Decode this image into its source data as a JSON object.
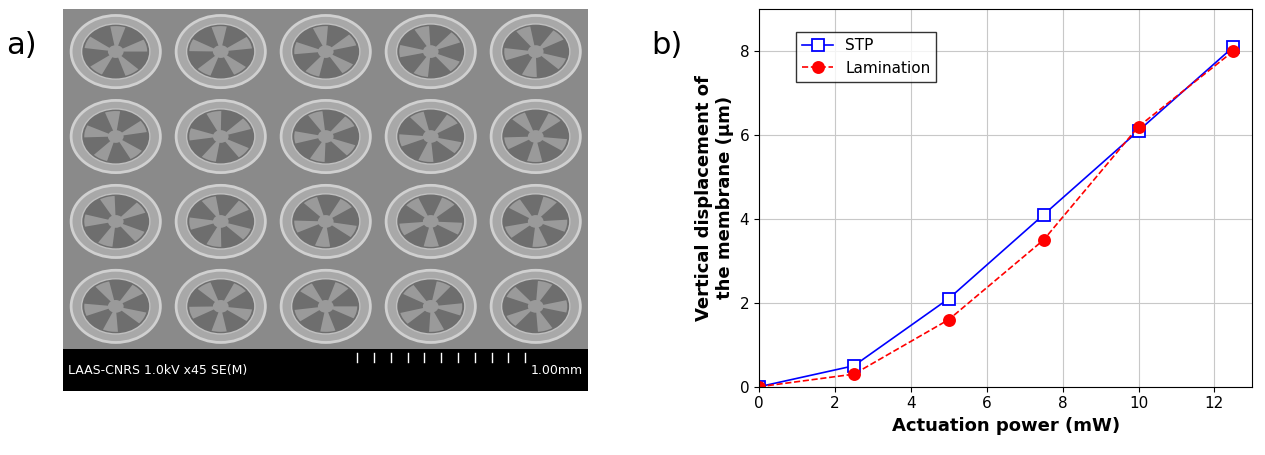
{
  "panel_labels": [
    "a)",
    "b)"
  ],
  "image": {
    "caption": "LAAS-CNRS 1.0kV x45 SE(M)",
    "scale_label": "1.00mm"
  },
  "chart_data": {
    "type": "line",
    "x": [
      0,
      2.5,
      5,
      7.5,
      10,
      12.5
    ],
    "series": [
      {
        "name": "STP",
        "color": "#0000ff",
        "marker": "square",
        "line_style": "solid",
        "values": [
          0,
          0.5,
          2.1,
          4.1,
          6.1,
          8.1
        ]
      },
      {
        "name": "Lamination",
        "color": "#ff0000",
        "marker": "circle",
        "line_style": "dashed",
        "values": [
          0,
          0.3,
          1.6,
          3.5,
          6.2,
          8.0
        ]
      }
    ],
    "x_label": "Actuation power (mW)",
    "y_label": "Vertical displacement of\nthe membrane (µm)",
    "xlim": [
      0,
      13
    ],
    "xticks": [
      0,
      2,
      4,
      6,
      8,
      10,
      12
    ],
    "ylim": [
      0,
      9
    ],
    "yticks": [
      0,
      2,
      4,
      6,
      8
    ],
    "grid": true,
    "legend": "upper left"
  }
}
